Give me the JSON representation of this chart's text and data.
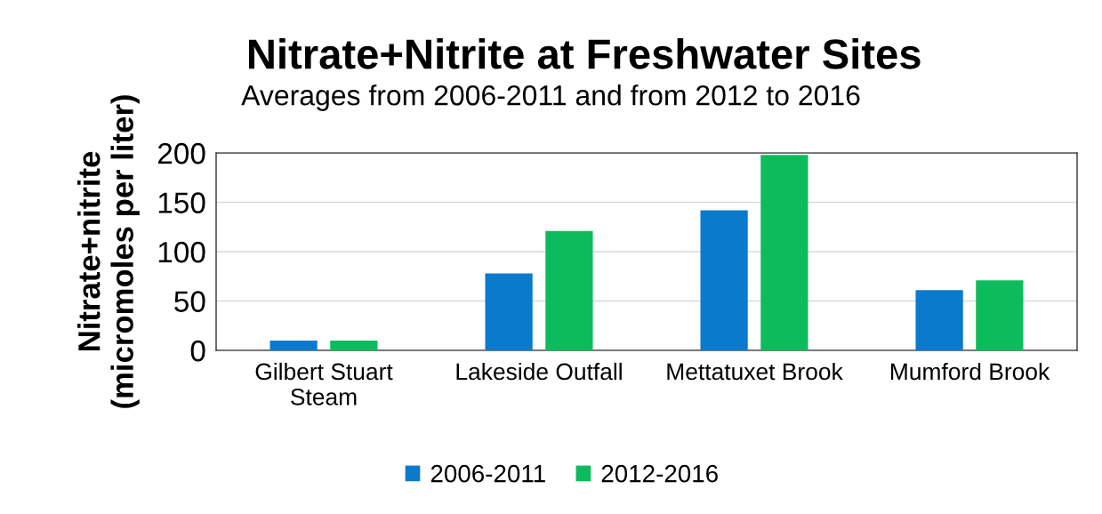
{
  "chart_data": {
    "type": "bar",
    "title": "Nitrate+Nitrite at Freshwater Sites",
    "subtitle": "Averages from 2006-2011 and from 2012 to 2016",
    "ylabel": "Nitrate+nitrite\n(micromoles per liter)",
    "categories": [
      "Gilbert Stuart\nSteam",
      "Lakeside Outfall",
      "Mettatuxet Brook",
      "Mumford Brook"
    ],
    "series": [
      {
        "name": "2006-2011",
        "color": "#0a7acc",
        "values": [
          10,
          78,
          142,
          61
        ]
      },
      {
        "name": "2012-2016",
        "color": "#0cbc5c",
        "values": [
          10,
          121,
          198,
          71
        ]
      }
    ],
    "ylim": [
      0,
      200
    ],
    "yticks": [
      0,
      50,
      100,
      150,
      200
    ],
    "grid": "y",
    "legend": "bottom"
  }
}
